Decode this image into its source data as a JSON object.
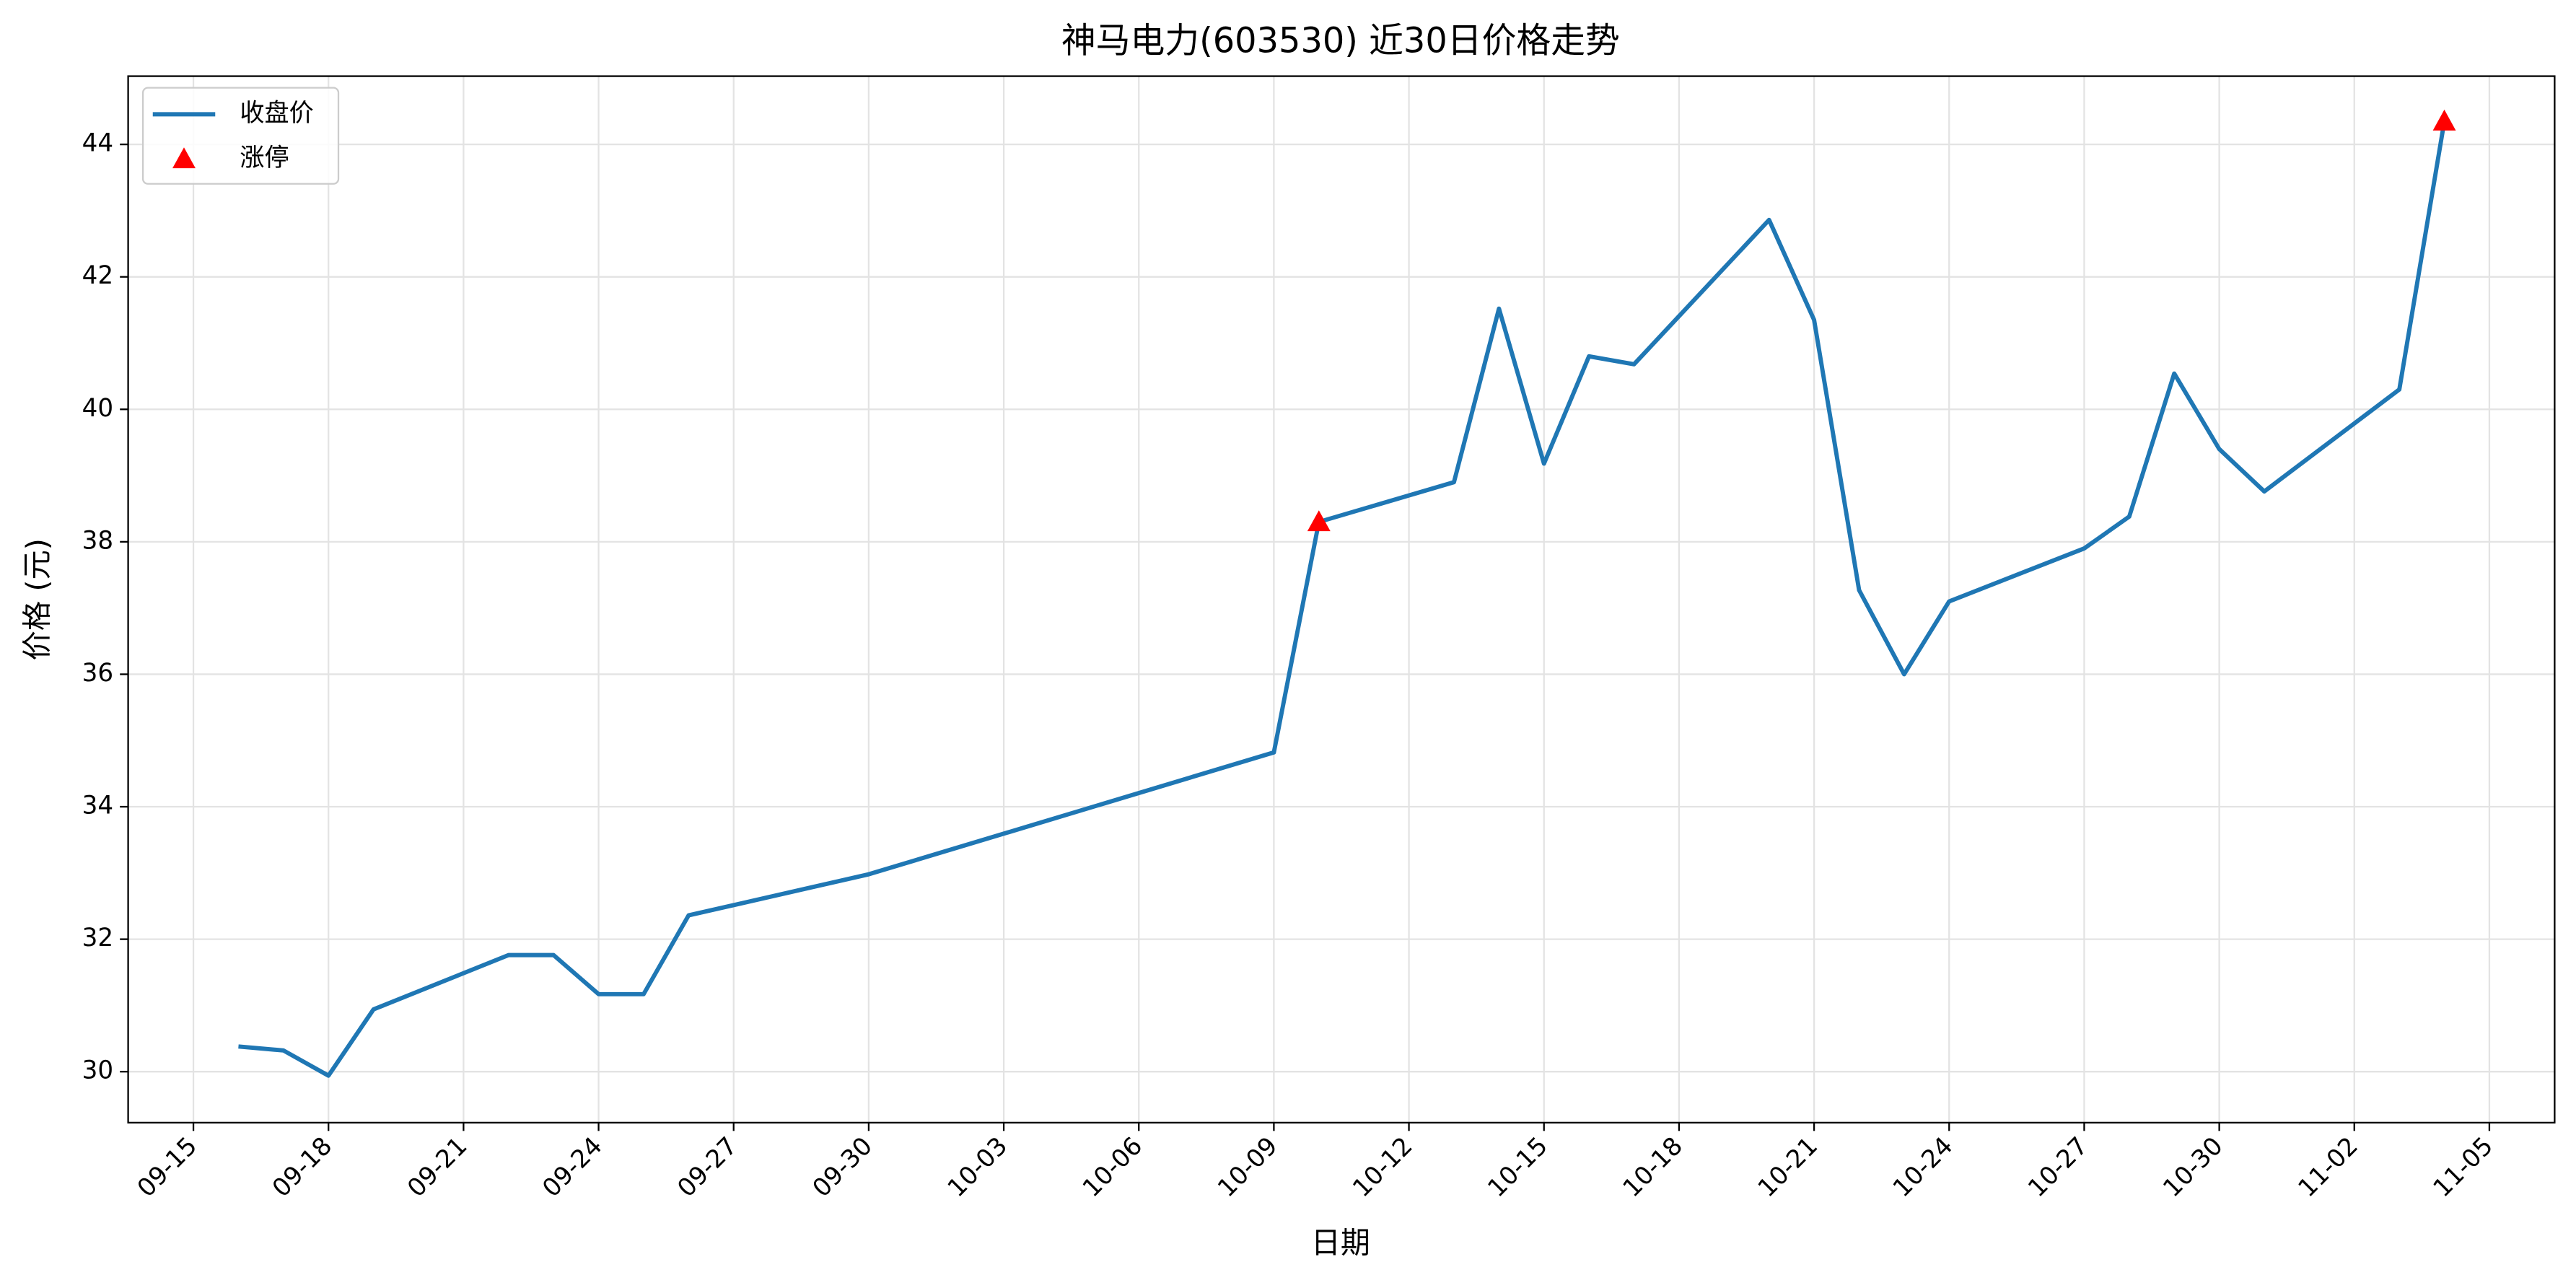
{
  "chart_data": {
    "type": "line",
    "title": "神马电力(603530) 近30日价格走势",
    "x_label": "日期",
    "y_label": "价格 (元)",
    "x": [
      "09-16",
      "09-17",
      "09-18",
      "09-19",
      "09-22",
      "09-23",
      "09-24",
      "09-25",
      "09-26",
      "09-30",
      "10-09",
      "10-10",
      "10-13",
      "10-14",
      "10-15",
      "10-16",
      "10-17",
      "10-20",
      "10-21",
      "10-22",
      "10-23",
      "10-24",
      "10-27",
      "10-28",
      "10-29",
      "10-30",
      "10-31",
      "11-03",
      "11-04"
    ],
    "series": [
      {
        "name": "收盘价",
        "color": "#1f77b4",
        "values": [
          30.38,
          30.32,
          29.94,
          30.94,
          31.76,
          31.76,
          31.17,
          31.17,
          32.36,
          32.98,
          34.82,
          38.3,
          38.9,
          41.52,
          39.18,
          40.8,
          40.68,
          42.86,
          41.35,
          37.27,
          36.0,
          37.1,
          37.9,
          38.38,
          40.54,
          39.4,
          38.76,
          40.3,
          44.35
        ]
      },
      {
        "name": "涨停",
        "color": "#ff0000",
        "marker": "triangle",
        "x": [
          "10-10",
          "11-04"
        ],
        "values": [
          38.3,
          44.35
        ]
      }
    ],
    "ylim": [
      29.23,
      45.03
    ],
    "yticks": [
      30,
      32,
      34,
      36,
      38,
      40,
      42,
      44
    ],
    "xticks": [
      "09-15",
      "09-18",
      "09-21",
      "09-24",
      "09-27",
      "09-30",
      "10-03",
      "10-06",
      "10-09",
      "10-12",
      "10-15",
      "10-18",
      "10-21",
      "10-24",
      "10-27",
      "10-30",
      "11-02",
      "11-05"
    ],
    "grid": true,
    "legend": "upper left"
  }
}
